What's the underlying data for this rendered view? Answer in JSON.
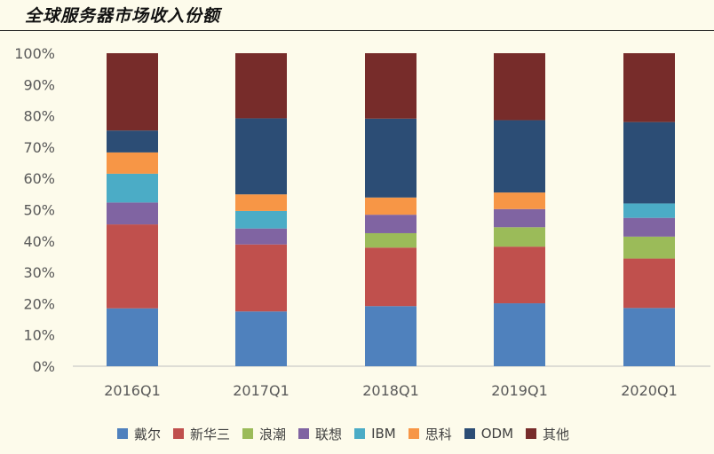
{
  "title": "全球服务器市场收入份额",
  "chart_data": {
    "type": "bar",
    "stacked": true,
    "categories": [
      "2016Q1",
      "2017Q1",
      "2018Q1",
      "2019Q1",
      "2020Q1"
    ],
    "ylim": [
      0,
      100
    ],
    "yticks": [
      "0%",
      "10%",
      "20%",
      "30%",
      "40%",
      "50%",
      "60%",
      "70%",
      "80%",
      "90%",
      "100%"
    ],
    "legend_position": "bottom",
    "series": [
      {
        "name": "戴尔",
        "color": "#4f81bd",
        "values": [
          18.5,
          17.5,
          19.2,
          20.1,
          18.6
        ]
      },
      {
        "name": "新华三",
        "color": "#c0504d",
        "values": [
          26.8,
          21.4,
          18.7,
          18.1,
          15.8
        ]
      },
      {
        "name": "浪潮",
        "color": "#9bbb59",
        "values": [
          0,
          0,
          4.6,
          6.2,
          7.0
        ]
      },
      {
        "name": "联想",
        "color": "#8064a2",
        "values": [
          7.0,
          5.1,
          5.9,
          5.8,
          6.0
        ]
      },
      {
        "name": "IBM",
        "color": "#4bacc6",
        "values": [
          9.2,
          5.6,
          0,
          0,
          4.6
        ]
      },
      {
        "name": "思科",
        "color": "#f79646",
        "values": [
          6.8,
          5.3,
          5.5,
          5.3,
          0
        ]
      },
      {
        "name": "ODM",
        "color": "#2c4d75",
        "values": [
          7.0,
          24.3,
          25.2,
          23.1,
          26.0
        ]
      },
      {
        "name": "其他",
        "color": "#772c2a",
        "values": [
          24.7,
          20.8,
          20.9,
          21.4,
          22.0
        ]
      }
    ]
  }
}
